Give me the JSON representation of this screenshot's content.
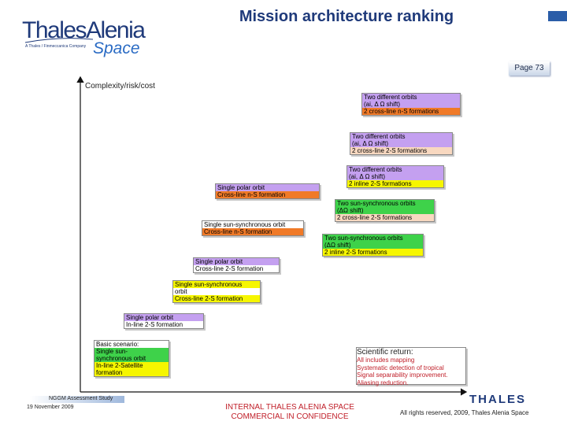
{
  "header": {
    "logo_main": "ThalesAlenia",
    "logo_sub": "A Thales / Finmeccanica Company",
    "logo_space": "Space",
    "title": "Mission architecture ranking",
    "page": "Page 73"
  },
  "axes": {
    "y_label": "Complexity/risk/cost",
    "x_label": "Scientific return"
  },
  "boxes": [
    {
      "rows": [
        {
          "text": "Two different orbits",
          "color": "lavender"
        },
        {
          "text": "(ai, Δ Ω shift)",
          "color": "lavender"
        },
        {
          "text": "2 cross-line n-S formations",
          "color": "orange"
        }
      ]
    },
    {
      "rows": [
        {
          "text": "Two different orbits",
          "color": "lavender"
        },
        {
          "text": "(ai, Δ Ω shift)",
          "color": "lavender"
        },
        {
          "text": "2 cross-line 2-S formations",
          "color": "peach"
        }
      ]
    },
    {
      "rows": [
        {
          "text": "Two different orbits",
          "color": "lavender"
        },
        {
          "text": "(ai, Δ Ω shift)",
          "color": "lavender"
        },
        {
          "text": "2 inline 2-S formations",
          "color": "yellow"
        }
      ]
    },
    {
      "rows": [
        {
          "text": "Single polar orbit",
          "color": "lavender"
        },
        {
          "text": "Cross-line n-S formation",
          "color": "orange"
        }
      ]
    },
    {
      "rows": [
        {
          "text": "Two sun-synchronous orbits",
          "color": "green"
        },
        {
          "text": "(ΔΩ shift)",
          "color": "green"
        },
        {
          "text": "2 cross-line 2-S formations",
          "color": "peach"
        }
      ]
    },
    {
      "rows": [
        {
          "text": "Single sun-synchronous orbit",
          "color": "white"
        },
        {
          "text": "Cross-line n-S formation",
          "color": "orange"
        }
      ]
    },
    {
      "rows": [
        {
          "text": "Two sun-synchronous orbits",
          "color": "green"
        },
        {
          "text": "(ΔΩ shift)",
          "color": "green"
        },
        {
          "text": "2 inline 2-S formations",
          "color": "yellow"
        }
      ]
    },
    {
      "rows": [
        {
          "text": "Single polar orbit",
          "color": "lavender"
        },
        {
          "text": "Cross-line 2-S formation",
          "color": "white"
        }
      ]
    },
    {
      "rows": [
        {
          "text": "Single sun-synchronous",
          "color": "yellow"
        },
        {
          "text": "orbit",
          "color": "white"
        },
        {
          "text": "Cross-line 2-S formation",
          "color": "yellow"
        }
      ]
    },
    {
      "rows": [
        {
          "text": "Single polar orbit",
          "color": "lavender"
        },
        {
          "text": "In-line 2-S formation",
          "color": "white"
        }
      ]
    },
    {
      "rows": [
        {
          "text": "Basic scenario:",
          "color": "white"
        },
        {
          "text": "Single sun-",
          "color": "green"
        },
        {
          "text": "synchronous orbit",
          "color": "green"
        },
        {
          "text": "In-line 2-Satellite",
          "color": "yellow"
        },
        {
          "text": "formation",
          "color": "yellow"
        }
      ]
    }
  ],
  "scientific_return": {
    "heading": "Scientific return:",
    "items": [
      "All includes mapping",
      "Systematic detection of tropical",
      "Signal separability improvement.",
      "Aliasing reduction."
    ]
  },
  "footer": {
    "study": "NGGM Assessment Study",
    "date": "19 November 2009",
    "internal_line1": "INTERNAL THALES ALENIA SPACE",
    "internal_line2": "COMMERCIAL IN CONFIDENCE",
    "thales": "THALES",
    "rights": "All rights reserved, 2009, Thales Alenia Space"
  },
  "colors": {
    "lavender": "#c4a0f0",
    "orange": "#f07a28",
    "green": "#3ed24a",
    "yellow": "#f6f600",
    "blue": "#33c8f4",
    "peach": "#f8d8c0",
    "brand_blue": "#1f3a7a",
    "confidential_red": "#c0202a"
  }
}
